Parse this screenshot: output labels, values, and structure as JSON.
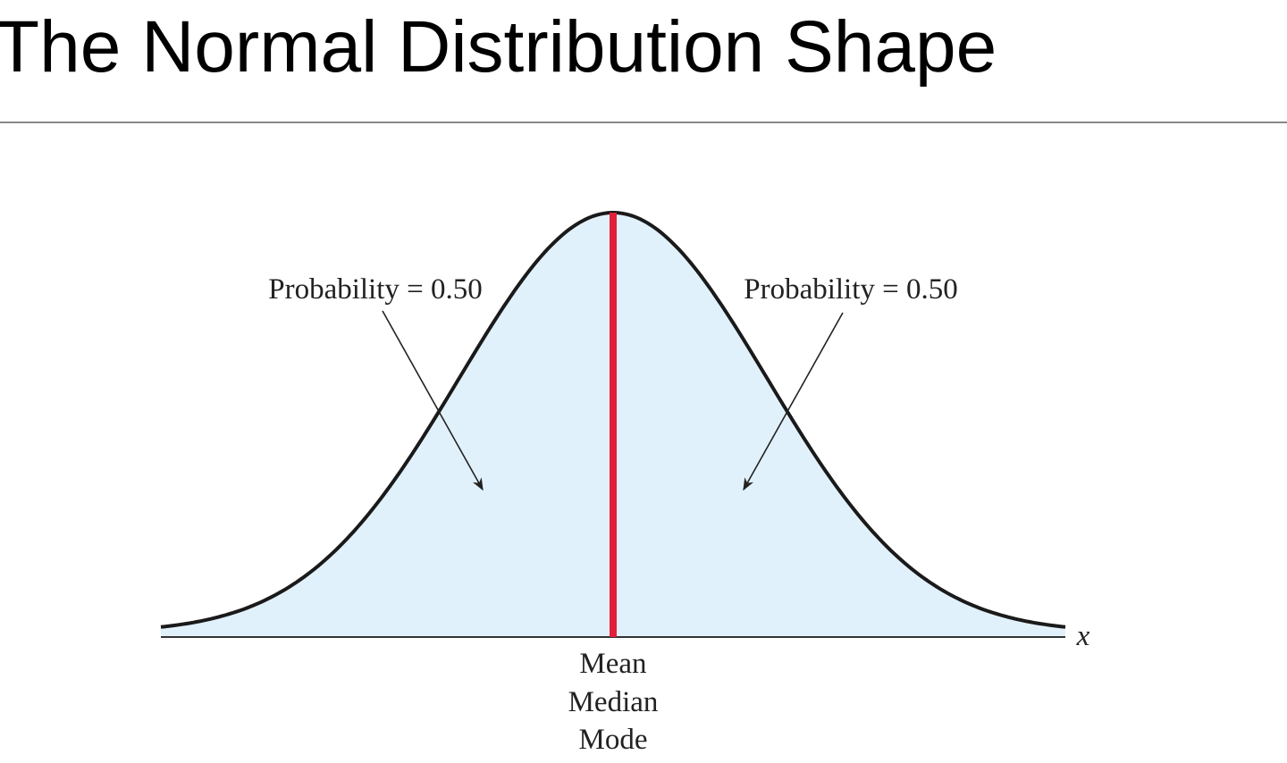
{
  "title": "The Normal Distribution Shape",
  "diagram": {
    "left_label": "Probability = 0.50",
    "right_label": "Probability = 0.50",
    "axis_label": "x",
    "center_labels": [
      "Mean",
      "Median",
      "Mode"
    ]
  }
}
